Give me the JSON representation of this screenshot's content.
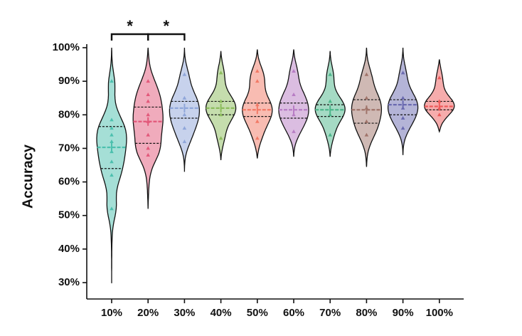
{
  "chart_data": {
    "type": "violin",
    "ylabel": "Accuracy",
    "categories": [
      "10%",
      "20%",
      "30%",
      "40%",
      "50%",
      "60%",
      "70%",
      "80%",
      "90%",
      "100%"
    ],
    "ylim": [
      30,
      100
    ],
    "yticks": [
      {
        "value": 30,
        "label": "30%"
      },
      {
        "value": 40,
        "label": "40%"
      },
      {
        "value": 50,
        "label": "50%"
      },
      {
        "value": 60,
        "label": "60%"
      },
      {
        "value": 70,
        "label": "70%"
      },
      {
        "value": 80,
        "label": "80%"
      },
      {
        "value": 90,
        "label": "90%"
      },
      {
        "value": 100,
        "label": "100%"
      }
    ],
    "violins": [
      {
        "color": "#4cc0ae",
        "min": 29.8,
        "q1": 64,
        "median": 70.3,
        "q3": 76.5,
        "max": 100,
        "points": [
          90,
          78.5,
          76,
          74,
          72,
          69,
          66,
          62,
          52
        ]
      },
      {
        "color": "#e2587a",
        "min": 52,
        "q1": 71.5,
        "median": 78,
        "q3": 82.3,
        "max": 100,
        "points": [
          90,
          86,
          84,
          80,
          78,
          74,
          70,
          68
        ]
      },
      {
        "color": "#8fa6da",
        "min": 63,
        "q1": 79,
        "median": 82,
        "q3": 84,
        "max": 100,
        "points": [
          92,
          85,
          80,
          76,
          72
        ]
      },
      {
        "color": "#8cbc5c",
        "min": 66.5,
        "q1": 80,
        "median": 82,
        "q3": 84,
        "max": 99,
        "points": [
          92.5,
          84,
          80,
          73
        ]
      },
      {
        "color": "#f27a66",
        "min": 67,
        "q1": 79.5,
        "median": 81.5,
        "q3": 83.5,
        "max": 99.5,
        "points": [
          93,
          90,
          83,
          78,
          73
        ]
      },
      {
        "color": "#b77cc4",
        "min": 67.5,
        "q1": 79,
        "median": 81.5,
        "q3": 83.5,
        "max": 99.5,
        "points": [
          93,
          86,
          80,
          75
        ]
      },
      {
        "color": "#4cb68a",
        "min": 67.5,
        "q1": 79.5,
        "median": 81.5,
        "q3": 83,
        "max": 99,
        "points": [
          92,
          84,
          80,
          74
        ]
      },
      {
        "color": "#a0746a",
        "min": 64.5,
        "q1": 77.5,
        "median": 81.5,
        "q3": 84.5,
        "max": 100,
        "points": [
          92,
          85,
          82,
          78,
          74
        ]
      },
      {
        "color": "#6a6ab0",
        "min": 68,
        "q1": 80,
        "median": 83,
        "q3": 84.5,
        "max": 100,
        "points": [
          92.5,
          85,
          82,
          79,
          76
        ]
      },
      {
        "color": "#ee5a5a",
        "min": 75,
        "q1": 81.5,
        "median": 82.5,
        "q3": 84,
        "max": 96.5,
        "points": [
          91,
          84,
          82,
          80
        ]
      }
    ],
    "comparisons": [
      {
        "from": 0,
        "to": 1,
        "label": "*"
      },
      {
        "from": 1,
        "to": 2,
        "label": "*"
      }
    ]
  }
}
